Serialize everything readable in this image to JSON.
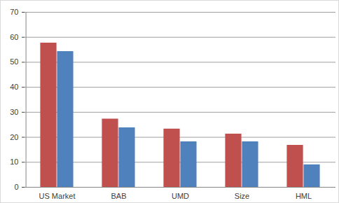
{
  "chart_data": {
    "type": "bar",
    "categories": [
      "US Market",
      "BAB",
      "UMD",
      "Size",
      "HML"
    ],
    "series": [
      {
        "color": "#c0504d",
        "values": [
          57.7,
          27.3,
          23.3,
          21.3,
          16.8
        ]
      },
      {
        "color": "#4f81bd",
        "values": [
          54.3,
          23.8,
          18.2,
          18.2,
          9.0
        ]
      }
    ],
    "ylim": [
      0,
      70
    ],
    "yticks": [
      0,
      10,
      20,
      30,
      40,
      50,
      60,
      70
    ],
    "grid": true
  }
}
